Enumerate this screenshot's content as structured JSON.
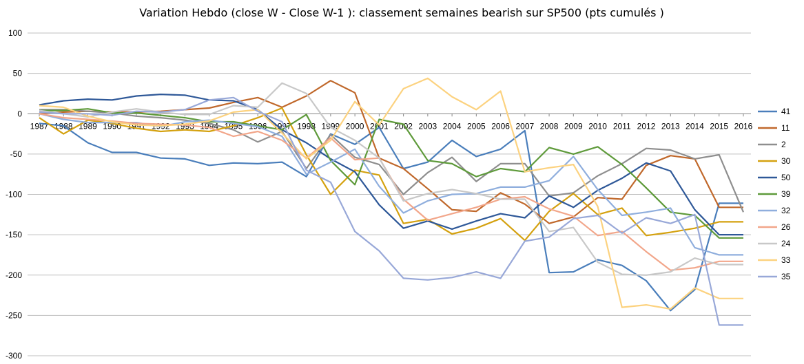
{
  "chart_data": {
    "type": "line",
    "title": "Variation Hebdo (close W - Close W-1 ): classement semaines bearish sur SP500 (pts cumulés )",
    "xlabel": "",
    "ylabel": "",
    "ylim": [
      -300,
      100
    ],
    "yticks": [
      "100",
      "50",
      "0",
      "-50",
      "-100",
      "-150",
      "-200",
      "-250",
      "-300"
    ],
    "ytick_values": [
      100,
      50,
      0,
      -50,
      -100,
      -150,
      -200,
      -250,
      -300
    ],
    "grid": true,
    "legend_position": "right",
    "categories": [
      "1987",
      "1988",
      "1989",
      "1990",
      "1991",
      "1992",
      "1993",
      "1994",
      "1995",
      "1996",
      "1997",
      "1998",
      "1999",
      "2000",
      "2001",
      "2002",
      "2003",
      "2004",
      "2005",
      "2006",
      "2007",
      "2008",
      "2009",
      "2010",
      "2011",
      "2012",
      "2013",
      "2014",
      "2015",
      "2016"
    ],
    "series": [
      {
        "name": "41",
        "color": "#4a7ebb",
        "values": [
          -12,
          -15,
          -36,
          -48,
          -48,
          -55,
          -56,
          -64,
          -61,
          -62,
          -60,
          -78,
          -25,
          -38,
          -17,
          -68,
          -60,
          -33,
          -53,
          -44,
          -21,
          -197,
          -196,
          -181,
          -188,
          -207,
          -244,
          -218,
          -111,
          -111
        ]
      },
      {
        "name": "11",
        "color": "#c0682b",
        "values": [
          0,
          2,
          3,
          2,
          2,
          3,
          5,
          7,
          14,
          20,
          8,
          22,
          41,
          26,
          -55,
          -68,
          -93,
          -119,
          -121,
          -98,
          -112,
          -136,
          -128,
          -104,
          -106,
          -64,
          -52,
          -56,
          -116,
          -116
        ]
      },
      {
        "name": "2",
        "color": "#8e8e8e",
        "values": [
          5,
          5,
          3,
          1,
          -3,
          -5,
          -8,
          -12,
          -20,
          -35,
          -22,
          -68,
          -26,
          -54,
          -63,
          -100,
          -73,
          -54,
          -84,
          -62,
          -62,
          -102,
          -98,
          -77,
          -62,
          -43,
          -45,
          -56,
          -51,
          -122
        ]
      },
      {
        "name": "30",
        "color": "#d4a10f",
        "values": [
          -5,
          -25,
          -8,
          -12,
          -18,
          -22,
          -20,
          -22,
          -15,
          -5,
          7,
          -51,
          -100,
          -70,
          -76,
          -136,
          -131,
          -149,
          -142,
          -130,
          -157,
          -121,
          -99,
          -125,
          -117,
          -151,
          -147,
          -142,
          -134,
          -134
        ]
      },
      {
        "name": "50",
        "color": "#2e5898",
        "values": [
          11,
          16,
          18,
          17,
          22,
          24,
          23,
          17,
          16,
          5,
          -20,
          -36,
          -56,
          -72,
          -113,
          -142,
          -133,
          -143,
          -133,
          -124,
          -129,
          -102,
          -116,
          -95,
          -80,
          -61,
          -71,
          -119,
          -150,
          -150
        ]
      },
      {
        "name": "39",
        "color": "#5e9a3a",
        "values": [
          4,
          4,
          6,
          1,
          1,
          -2,
          -5,
          -10,
          -10,
          -15,
          -20,
          -1,
          -58,
          -88,
          -7,
          -13,
          -58,
          -62,
          -78,
          -68,
          -72,
          -42,
          -50,
          -41,
          -63,
          -92,
          -122,
          -126,
          -154,
          -154
        ]
      },
      {
        "name": "32",
        "color": "#8faedd",
        "values": [
          0,
          -7,
          -11,
          -11,
          -11,
          -16,
          -10,
          -8,
          -12,
          -16,
          -28,
          -75,
          -60,
          -44,
          -90,
          -123,
          -108,
          -100,
          -99,
          -91,
          -91,
          -83,
          -53,
          -94,
          -126,
          -122,
          -117,
          -166,
          -175,
          -175
        ]
      },
      {
        "name": "26",
        "color": "#f2a68a",
        "values": [
          0,
          -5,
          -7,
          -9,
          -12,
          -13,
          -14,
          -17,
          -28,
          -22,
          -33,
          -55,
          -30,
          -57,
          -55,
          -106,
          -132,
          -124,
          -116,
          -106,
          -103,
          -118,
          -127,
          -151,
          -146,
          -171,
          -194,
          -191,
          -183,
          -183
        ]
      },
      {
        "name": "24",
        "color": "#c8c8c8",
        "values": [
          4,
          0,
          -4,
          2,
          6,
          2,
          -1,
          -1,
          10,
          8,
          38,
          25,
          -17,
          -33,
          -55,
          -108,
          -99,
          -94,
          -99,
          -106,
          -106,
          -146,
          -141,
          -184,
          -199,
          -200,
          -196,
          -179,
          -187,
          -187
        ]
      },
      {
        "name": "33",
        "color": "#fcd27f",
        "values": [
          10,
          8,
          -3,
          -10,
          -14,
          -15,
          -13,
          -9,
          2,
          5,
          -24,
          -56,
          -33,
          15,
          -14,
          31,
          44,
          21,
          5,
          28,
          -72,
          -67,
          -63,
          -115,
          -240,
          -237,
          -242,
          -216,
          -229,
          -229
        ]
      },
      {
        "name": "35",
        "color": "#98a8d8",
        "values": [
          2,
          0,
          0,
          -2,
          3,
          2,
          5,
          17,
          20,
          3,
          -10,
          -70,
          -85,
          -146,
          -170,
          -204,
          -206,
          -203,
          -196,
          -204,
          -158,
          -153,
          -130,
          -126,
          -148,
          -129,
          -136,
          -125,
          -262,
          -262
        ]
      }
    ]
  }
}
